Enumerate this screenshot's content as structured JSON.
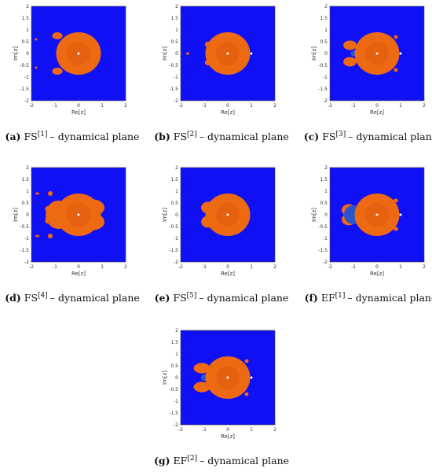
{
  "figure": {
    "panels": [
      {
        "label": "(a)",
        "method": "FS",
        "sup": "[1]",
        "text": "– dynamical plane",
        "xlabel": "Re[z]",
        "ylabel": "Im[z]",
        "xlim": [
          -2,
          2
        ],
        "ylim": [
          -2,
          2
        ],
        "xticks": [
          -2,
          -1,
          0,
          1,
          2
        ],
        "yticks": [
          -2,
          -1.5,
          -1,
          -0.5,
          0,
          0.5,
          1,
          1.5,
          2
        ]
      },
      {
        "label": "(b)",
        "method": "FS",
        "sup": "[2]",
        "text": "– dynamical plane",
        "xlabel": "Re[z]",
        "ylabel": "Im[z]",
        "xlim": [
          -2,
          2
        ],
        "ylim": [
          -2,
          2
        ],
        "xticks": [
          -2,
          -1,
          0,
          1,
          2
        ],
        "yticks": [
          -2,
          -1.5,
          -1,
          -0.5,
          0,
          0.5,
          1,
          1.5,
          2
        ]
      },
      {
        "label": "(c)",
        "method": "FS",
        "sup": "[3]",
        "text": "– dynamical plane",
        "xlabel": "Re[z]",
        "ylabel": "Im[z]",
        "xlim": [
          -2,
          2
        ],
        "ylim": [
          -2,
          2
        ],
        "xticks": [
          -2,
          -1,
          0,
          1,
          2
        ],
        "yticks": [
          -2,
          -1.5,
          -1,
          -0.5,
          0,
          0.5,
          1,
          1.5,
          2
        ]
      },
      {
        "label": "(d)",
        "method": "FS",
        "sup": "[4]",
        "text": "– dynamical plane",
        "xlabel": "Re[z]",
        "ylabel": "Im[z]",
        "xlim": [
          -2,
          2
        ],
        "ylim": [
          -2,
          2
        ],
        "xticks": [
          -2,
          -1,
          0,
          1,
          2
        ],
        "yticks": [
          -2,
          -1.5,
          -1,
          -0.5,
          0,
          0.5,
          1,
          1.5,
          2
        ]
      },
      {
        "label": "(e)",
        "method": "FS",
        "sup": "[5]",
        "text": "– dynamical plane",
        "xlabel": "Re[z]",
        "ylabel": "Im[z]",
        "xlim": [
          -2,
          2
        ],
        "ylim": [
          -2,
          2
        ],
        "xticks": [
          -2,
          -1,
          0,
          1,
          2
        ],
        "yticks": [
          -2,
          -1.5,
          -1,
          -0.5,
          0,
          0.5,
          1,
          1.5,
          2
        ]
      },
      {
        "label": "(f)",
        "method": "EF",
        "sup": "[1]",
        "text": "– dynamical plane",
        "xlabel": "Re[z]",
        "ylabel": "Im[z]",
        "xlim": [
          -2,
          2
        ],
        "ylim": [
          -2,
          2
        ],
        "xticks": [
          -2,
          -1,
          0,
          1,
          2
        ],
        "yticks": [
          -2,
          -1.5,
          -1,
          -0.5,
          0,
          0.5,
          1,
          1.5,
          2
        ]
      },
      {
        "label": "(g)",
        "method": "EF",
        "sup": "[2]",
        "text": "– dynamical plane",
        "xlabel": "Re[z]",
        "ylabel": "Im[z]",
        "xlim": [
          -2,
          2
        ],
        "ylim": [
          -2,
          2
        ],
        "xticks": [
          -2,
          -1,
          0,
          1,
          2
        ],
        "yticks": [
          -2,
          -1.5,
          -1,
          -0.5,
          0,
          0.5,
          1,
          1.5,
          2
        ]
      }
    ]
  }
}
